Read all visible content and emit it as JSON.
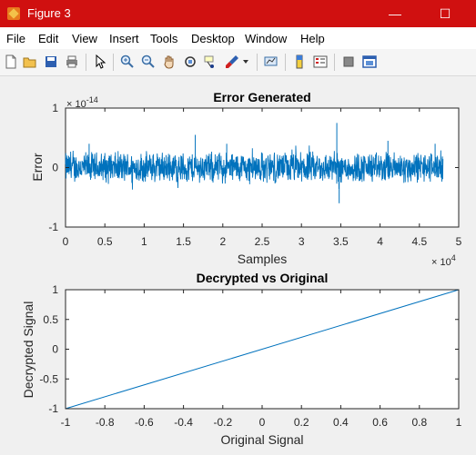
{
  "window": {
    "title": "Figure 3",
    "minimize_glyph": "—",
    "maximize_glyph": "☐",
    "close_glyph": "✕"
  },
  "menu": [
    "File",
    "Edit",
    "View",
    "Insert",
    "Tools",
    "Desktop",
    "Window",
    "Help"
  ],
  "toolbar_icons": [
    "new-figure-icon",
    "open-icon",
    "save-icon",
    "print-icon",
    "pointer-icon",
    "zoom-in-icon",
    "zoom-out-icon",
    "pan-icon",
    "rotate-3d-icon",
    "data-cursor-icon",
    "brush-icon",
    "dropdown-arrow-icon",
    "link-plot-icon",
    "colorbar-icon",
    "legend-icon",
    "hide-plot-tools-icon",
    "show-plot-tools-icon"
  ],
  "colors": {
    "titlebar": "#d01010",
    "line": "#0072bd",
    "figure_bg": "#f0f0f0"
  },
  "chart_data": [
    {
      "type": "line",
      "title": "Error Generated",
      "xlabel": "Samples",
      "ylabel": "Error",
      "xlim": [
        0,
        50000
      ],
      "ylim": [
        -1e-14,
        1e-14
      ],
      "x_ticks": [
        "0",
        "0.5",
        "1",
        "1.5",
        "2",
        "2.5",
        "3",
        "3.5",
        "4",
        "4.5",
        "5"
      ],
      "y_ticks": [
        "1",
        "0",
        "-1"
      ],
      "x_exponent": {
        "base": "× 10",
        "power": "4"
      },
      "y_exponent": {
        "base": "× 10",
        "power": "-14"
      },
      "grid": false,
      "series": [
        {
          "description_range": "noise around 0 from 0 to ~48000 samples",
          "x_end": 48000,
          "typical_amplitude": 2.5e-15,
          "peaks": [
            {
              "x": 3000,
              "y": 4e-15
            },
            {
              "x": 16500,
              "y": 5.5e-15
            },
            {
              "x": 20500,
              "y": 4e-15
            },
            {
              "x": 34500,
              "y": 7.5e-15
            },
            {
              "x": 34800,
              "y": -6e-15
            },
            {
              "x": 41000,
              "y": 4.5e-15
            },
            {
              "x": 47000,
              "y": 4e-15
            }
          ]
        }
      ]
    },
    {
      "type": "line",
      "title": "Decrypted vs Original",
      "xlabel": "Original Signal",
      "ylabel": "Decrypted Signal",
      "xlim": [
        -1,
        1
      ],
      "ylim": [
        -1,
        1
      ],
      "x_ticks": [
        "-1",
        "-0.8",
        "-0.6",
        "-0.4",
        "-0.2",
        "0",
        "0.2",
        "0.4",
        "0.6",
        "0.8",
        "1"
      ],
      "y_ticks": [
        "1",
        "0.5",
        "0",
        "-0.5",
        "-1"
      ],
      "grid": false,
      "series": [
        {
          "x": [
            -1,
            1
          ],
          "y": [
            -1,
            1
          ]
        }
      ]
    }
  ]
}
